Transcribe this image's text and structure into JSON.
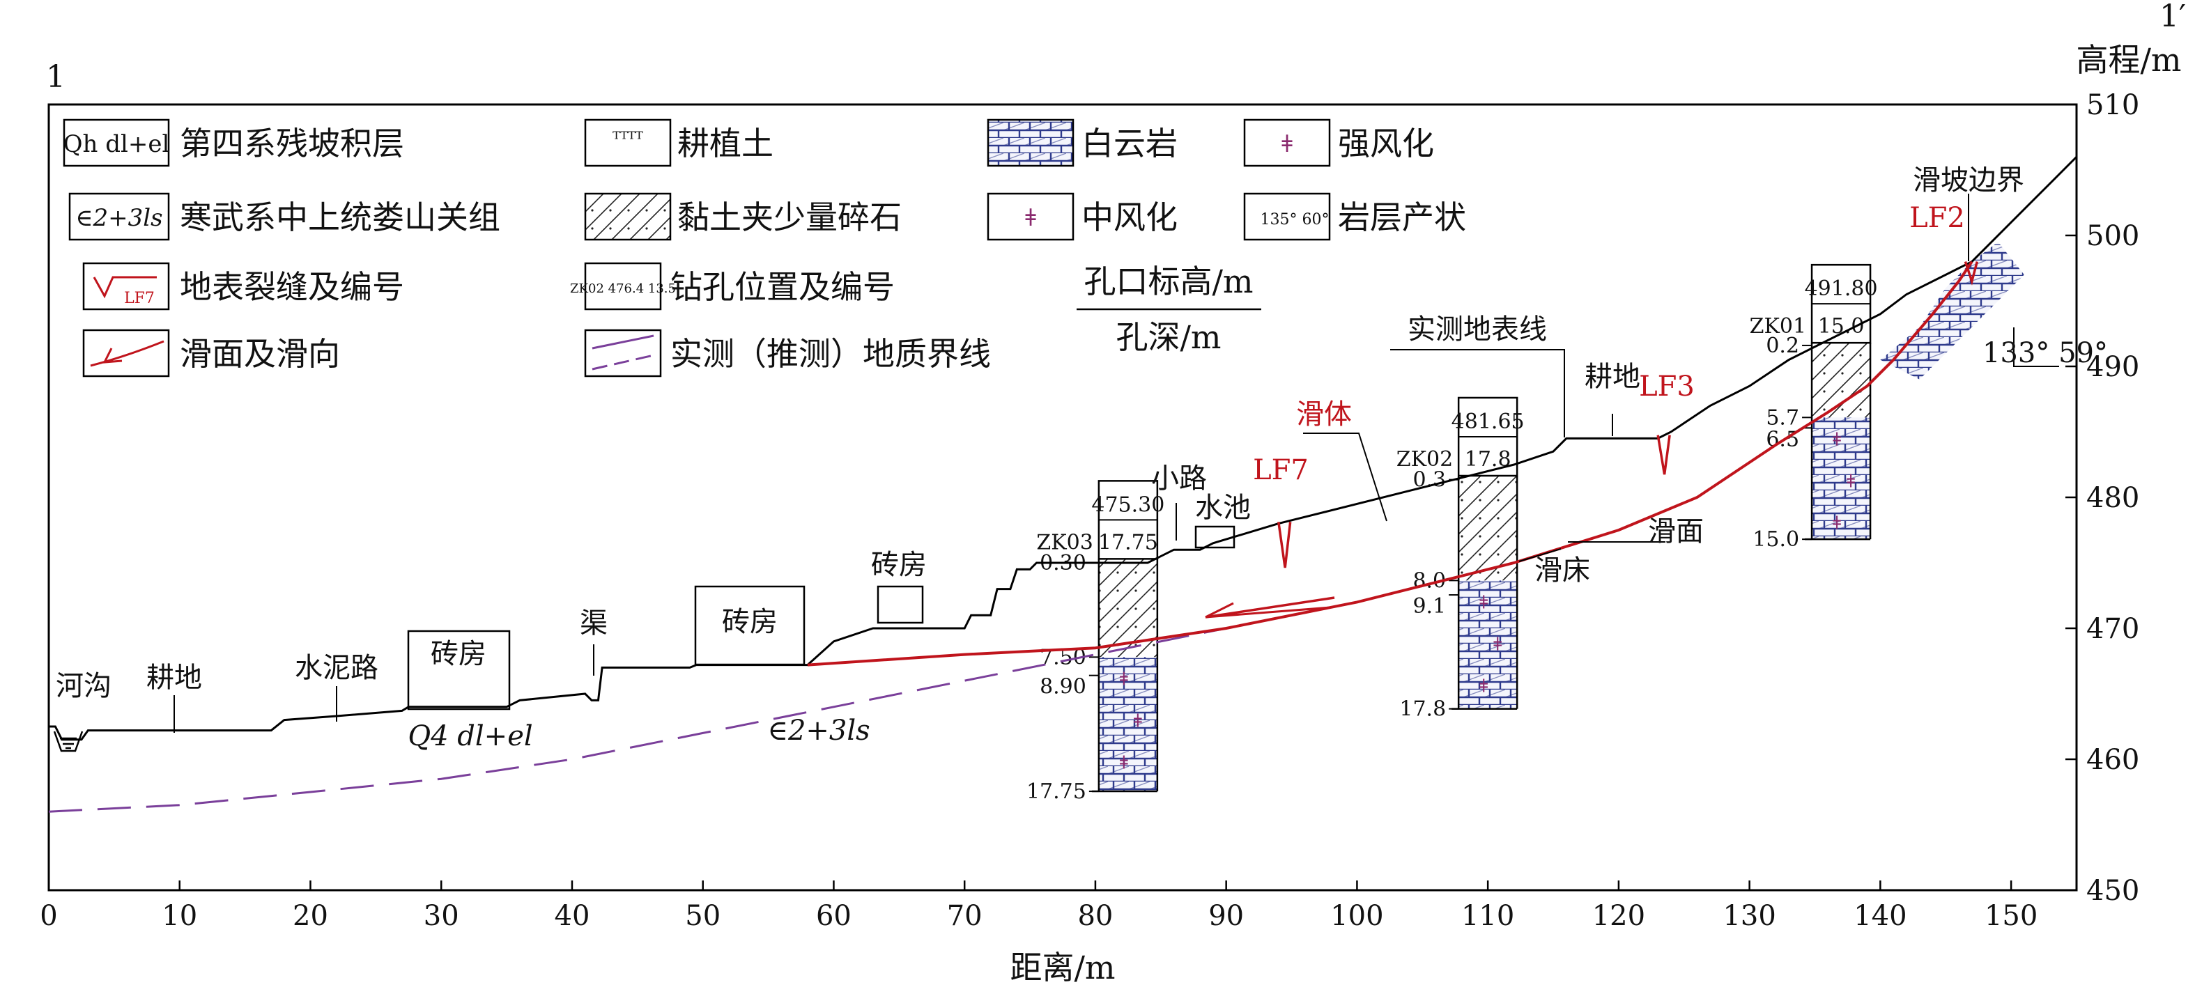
{
  "section": {
    "left_label": "1",
    "right_label": "1′"
  },
  "axes": {
    "xlabel": "距离/m",
    "ylabel": "高程/m",
    "x_ticks": [
      0,
      10,
      20,
      30,
      40,
      50,
      60,
      70,
      80,
      90,
      100,
      110,
      120,
      130,
      140,
      150
    ],
    "y_ticks": [
      450,
      460,
      470,
      480,
      490,
      500,
      510
    ],
    "xlim": [
      0,
      155
    ],
    "ylim": [
      450,
      510
    ]
  },
  "legend": {
    "items": [
      {
        "symbol": "Qh dl+el",
        "label": "第四系残坡积层"
      },
      {
        "symbol": "∈2+3ls",
        "label": "寒武系中上统娄山关组"
      },
      {
        "symbol": "LF7",
        "label": "地表裂缝及编号"
      },
      {
        "label": "滑面及滑向"
      },
      {
        "label": "耕植土"
      },
      {
        "label": "黏土夹少量碎石"
      },
      {
        "symbol": "ZK02 476.4 13.5",
        "label": "钻孔位置及编号"
      },
      {
        "label": "实测（推测）地质界线"
      },
      {
        "label": "白云岩"
      },
      {
        "label": "中风化"
      },
      {
        "label": "强风化"
      },
      {
        "symbol": "135° 60°",
        "label": "岩层产状"
      }
    ],
    "formula_top": "孔口标高/m",
    "formula_bottom": "孔深/m"
  },
  "profile": {
    "ground": [
      [
        0,
        462.5
      ],
      [
        0.5,
        462.5
      ],
      [
        1,
        461.5
      ],
      [
        2.5,
        461.5
      ],
      [
        3,
        462.2
      ],
      [
        17,
        462.2
      ],
      [
        18,
        463
      ],
      [
        22,
        463.3
      ],
      [
        27,
        463.7
      ],
      [
        27.5,
        464
      ],
      [
        35,
        464
      ],
      [
        36,
        464.5
      ],
      [
        41,
        465
      ],
      [
        41.5,
        464.5
      ],
      [
        42,
        464.5
      ],
      [
        42.3,
        467
      ],
      [
        49,
        467
      ],
      [
        49.5,
        467.2
      ],
      [
        58,
        467.2
      ],
      [
        60,
        469
      ],
      [
        63,
        470
      ],
      [
        70,
        470
      ],
      [
        70.5,
        471
      ],
      [
        72,
        471
      ],
      [
        72.5,
        473
      ],
      [
        73.5,
        473
      ],
      [
        74,
        474.5
      ],
      [
        75,
        474.5
      ],
      [
        75.5,
        475
      ],
      [
        84,
        475
      ],
      [
        86,
        476
      ],
      [
        88,
        476
      ],
      [
        89,
        476.5
      ],
      [
        94,
        478
      ],
      [
        104,
        480.5
      ],
      [
        108,
        481.5
      ],
      [
        112,
        482.5
      ],
      [
        115,
        483.5
      ],
      [
        116,
        484.5
      ],
      [
        123,
        484.5
      ],
      [
        124,
        485
      ],
      [
        127,
        487
      ],
      [
        130,
        488.5
      ],
      [
        133,
        490.5
      ],
      [
        136,
        492
      ],
      [
        140,
        494
      ],
      [
        142,
        495.5
      ],
      [
        146,
        497.5
      ],
      [
        147,
        498
      ],
      [
        150,
        501
      ],
      [
        153,
        504
      ],
      [
        155,
        506
      ]
    ],
    "slip_surface": [
      [
        58,
        467.2
      ],
      [
        70,
        468
      ],
      [
        80,
        468.5
      ],
      [
        90,
        470
      ],
      [
        100,
        472
      ],
      [
        108,
        474
      ],
      [
        112,
        475
      ],
      [
        120,
        477.5
      ],
      [
        126,
        480
      ],
      [
        132,
        484
      ],
      [
        136,
        486.5
      ],
      [
        139,
        488.5
      ],
      [
        141,
        490.5
      ],
      [
        144,
        494
      ],
      [
        146,
        496.5
      ],
      [
        147,
        498
      ]
    ],
    "geo_boundary": [
      [
        0,
        456
      ],
      [
        10,
        456.5
      ],
      [
        20,
        457.5
      ],
      [
        30,
        458.5
      ],
      [
        40,
        460
      ],
      [
        50,
        462
      ],
      [
        60,
        464
      ],
      [
        70,
        466
      ],
      [
        80,
        468
      ],
      [
        90,
        470
      ],
      [
        100,
        472
      ],
      [
        110,
        474.5
      ]
    ],
    "fissures": [
      {
        "id": "LF7",
        "x": 94.5,
        "depth": 3.5
      },
      {
        "id": "LF3",
        "x": 123.5,
        "depth": 3
      },
      {
        "id": "LF2",
        "x": 147,
        "depth": 1.5
      }
    ]
  },
  "boreholes": [
    {
      "id": "ZK03",
      "x": 82.5,
      "elevation": "475.30",
      "depth": "17.75",
      "marks": [
        "0.30",
        "7.50",
        "8.90",
        "17.75"
      ]
    },
    {
      "id": "ZK02",
      "x": 110,
      "elevation": "481.65",
      "depth": "17.8",
      "marks": [
        "0.3",
        "8.0",
        "9.1",
        "17.8"
      ]
    },
    {
      "id": "ZK01",
      "x": 137,
      "elevation": "491.80",
      "depth": "15.0",
      "marks": [
        "0.2",
        "5.7",
        "6.5",
        "15.0"
      ]
    }
  ],
  "annotations": {
    "river": "河沟",
    "field_left": "耕地",
    "cement_road": "水泥路",
    "brick_house_1": "砖房",
    "canal": "渠",
    "brick_house_2": "砖房",
    "brick_house_3": "砖房",
    "path": "小路",
    "pond": "水池",
    "slide_body": "滑体",
    "measured_surface": "实测地表线",
    "field_right": "耕地",
    "slide_boundary": "滑坡边界",
    "slip_surface": "滑面",
    "slip_bed": "滑床",
    "quaternary": "Q4 dl+el",
    "cambrian": "∈2+3ls",
    "attitude": "133° 59°",
    "lf7": "LF7",
    "lf3": "LF3",
    "lf2": "LF2"
  },
  "colors": {
    "slip": "#c0141c",
    "boundary": "#7a3f9a",
    "dolomite": "#2e3a8c",
    "weathered": "#8a2a6e"
  }
}
